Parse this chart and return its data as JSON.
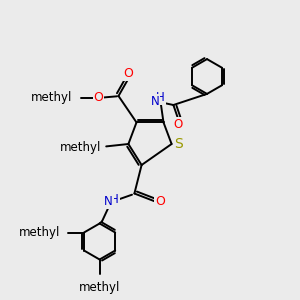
{
  "bg_color": "#ebebeb",
  "black": "#000000",
  "red": "#ff0000",
  "blue": "#0000cc",
  "sulfur": "#999900",
  "lw": 1.4,
  "figsize": [
    3.0,
    3.0
  ],
  "dpi": 100,
  "xlim": [
    0,
    10
  ],
  "ylim": [
    0,
    10
  ]
}
